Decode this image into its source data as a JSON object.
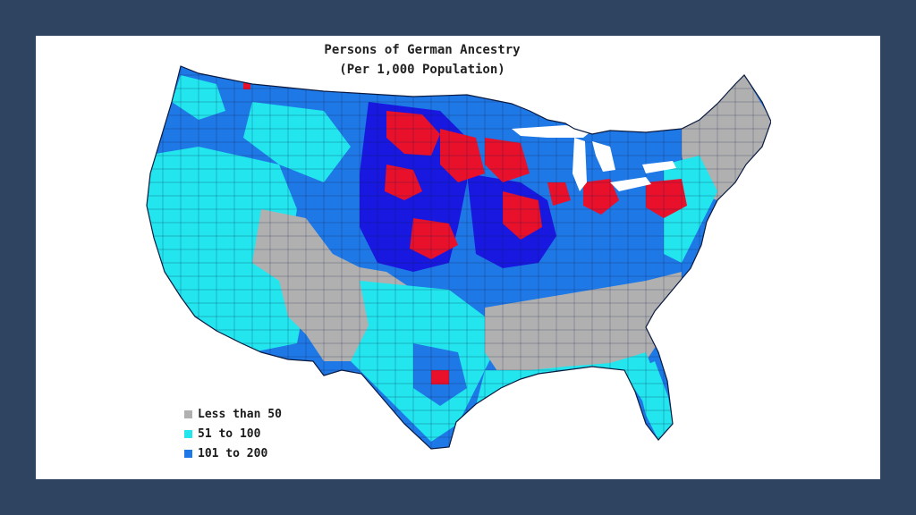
{
  "title_line1": "Persons of German Ancestry",
  "title_line2": "(Per 1,000 Population)",
  "legend": [
    {
      "label": "Less than 50",
      "color": "#b0b0b0"
    },
    {
      "label": "51 to 100",
      "color": "#22e5ee"
    },
    {
      "label": "101 to 200",
      "color": "#1e78e6"
    }
  ],
  "category_colors": {
    "less_than_50": "#b0b0b0",
    "51_to_100": "#22e5ee",
    "101_to_200": "#1e78e6",
    "200_plus_dark": "#1818e0",
    "highest": "#e8102a"
  }
}
